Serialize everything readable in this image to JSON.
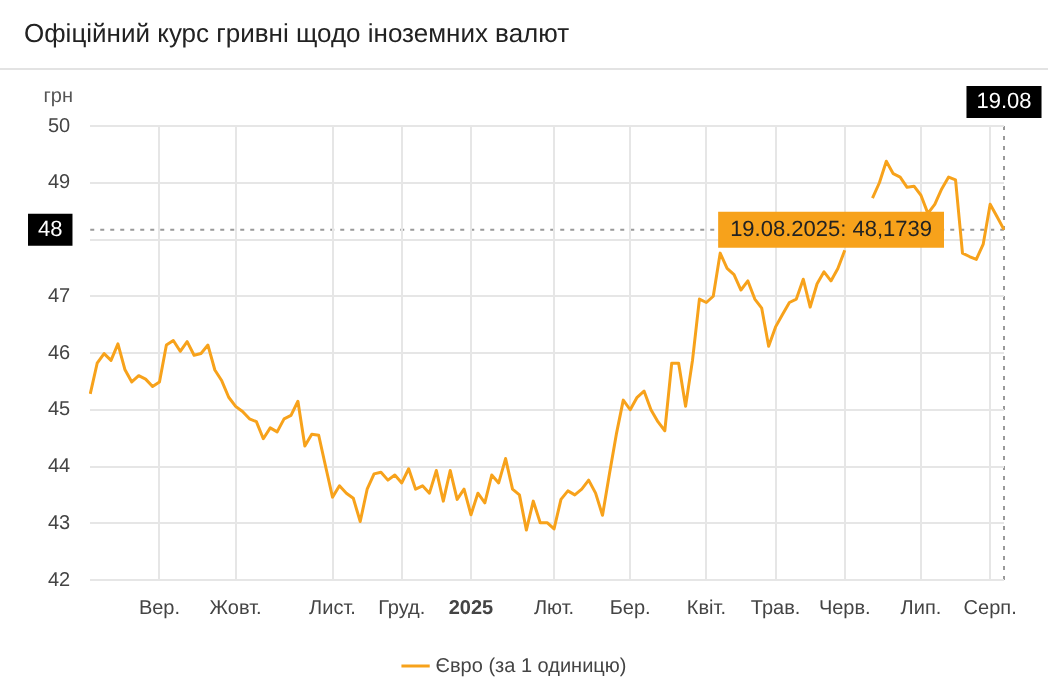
{
  "chart_data": {
    "type": "line",
    "title": "Офіційний курс гривні щодо іноземних валют",
    "ylabel": "грн",
    "categories": [
      null,
      null,
      null,
      null,
      null,
      null,
      null,
      null,
      null,
      null,
      "Вер.",
      null,
      null,
      null,
      null,
      null,
      null,
      null,
      null,
      null,
      null,
      "Жовт.",
      null,
      null,
      null,
      null,
      null,
      null,
      null,
      null,
      null,
      null,
      null,
      null,
      null,
      "Лист.",
      null,
      null,
      null,
      null,
      null,
      null,
      null,
      null,
      null,
      "Груд.",
      null,
      null,
      null,
      null,
      null,
      null,
      null,
      null,
      null,
      "2025",
      null,
      null,
      null,
      null,
      null,
      null,
      null,
      null,
      null,
      null,
      null,
      "Лют.",
      null,
      null,
      null,
      null,
      null,
      null,
      null,
      null,
      null,
      null,
      "Бер.",
      null,
      null,
      null,
      null,
      null,
      null,
      null,
      null,
      null,
      null,
      "Квіт.",
      null,
      null,
      null,
      null,
      null,
      null,
      null,
      null,
      null,
      "Трав.",
      null,
      null,
      null,
      null,
      null,
      null,
      null,
      null,
      null,
      "Черв.",
      null,
      null,
      null,
      null,
      null,
      null,
      null,
      null,
      null,
      null,
      "Лип.",
      null,
      null,
      null,
      null,
      null,
      null,
      null,
      null,
      null,
      "Серп.",
      null,
      null
    ],
    "ylim": [
      42,
      50
    ],
    "yticks": [
      42,
      43,
      44,
      45,
      46,
      47,
      {
        "value": 48,
        "label": null
      },
      49,
      50
    ],
    "grid": true,
    "legend": "bottom",
    "marker": "none",
    "line_style": "solid",
    "series": [
      {
        "name": "Євро (за 1 одиницю)",
        "color": "#f7a21b",
        "values": [
          45.28,
          45.82,
          45.99,
          45.87,
          46.16,
          45.71,
          45.49,
          45.6,
          45.54,
          45.41,
          45.49,
          46.14,
          46.22,
          46.03,
          46.2,
          45.96,
          45.99,
          46.14,
          45.7,
          45.51,
          45.22,
          45.06,
          44.97,
          44.84,
          44.79,
          44.49,
          44.68,
          44.61,
          44.84,
          44.9,
          45.15,
          44.36,
          44.57,
          44.55,
          44.0,
          43.46,
          43.66,
          43.53,
          43.44,
          43.03,
          43.6,
          43.87,
          43.9,
          43.76,
          43.85,
          43.71,
          43.96,
          43.6,
          43.66,
          43.53,
          43.93,
          43.39,
          43.93,
          43.42,
          43.6,
          43.15,
          43.53,
          43.36,
          43.85,
          43.71,
          44.14,
          43.6,
          43.5,
          42.88,
          43.39,
          43.01,
          43.01,
          42.9,
          43.42,
          43.57,
          43.5,
          43.6,
          43.76,
          43.53,
          43.14,
          43.87,
          44.57,
          45.17,
          45.0,
          45.22,
          45.33,
          45.0,
          44.79,
          44.63,
          45.82,
          45.82,
          45.06,
          45.87,
          46.95,
          46.89,
          47.0,
          47.76,
          47.49,
          47.38,
          47.11,
          47.27,
          46.95,
          46.79,
          46.12,
          46.46,
          46.68,
          46.89,
          46.95,
          47.3,
          46.81,
          47.22,
          47.43,
          47.27,
          47.49,
          47.81,
          null,
          null,
          null,
          48.73,
          49.0,
          49.38,
          49.16,
          49.1,
          48.92,
          48.94,
          48.78,
          48.46,
          48.62,
          48.89,
          49.1,
          49.05,
          47.76,
          47.7,
          47.65,
          47.92,
          48.62,
          48.4,
          48.1739
        ]
      }
    ],
    "ref_lines": [
      {
        "axis": "y",
        "value": 48.1739,
        "label": "48",
        "color": "#999999",
        "line_style": "dotted"
      },
      {
        "axis": "x",
        "label": "19.08",
        "color": "#999999",
        "line_style": "dotted"
      }
    ],
    "annotations": [
      {
        "text": "19.08.2025: 48,1739",
        "y": 48.1739
      }
    ]
  }
}
